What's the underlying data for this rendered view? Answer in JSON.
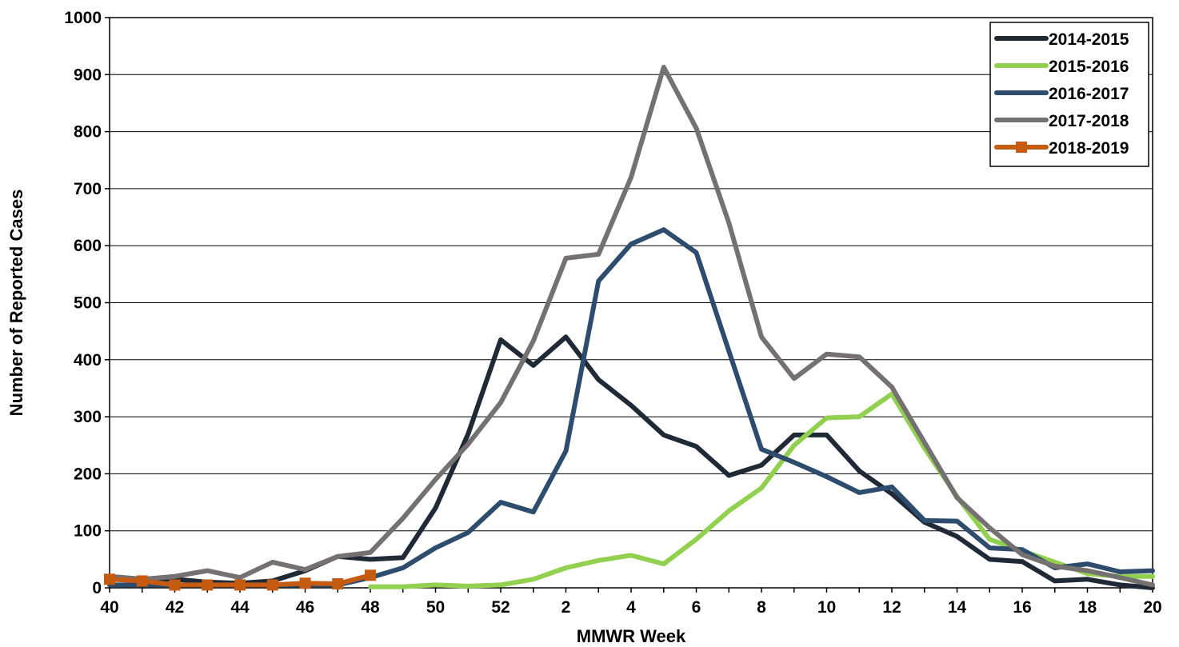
{
  "chart_data": {
    "type": "line",
    "title": "",
    "xlabel": "MMWR Week",
    "ylabel": "Number of Reported Cases",
    "ylim": [
      0,
      1000
    ],
    "yticks": [
      0,
      100,
      200,
      300,
      400,
      500,
      600,
      700,
      800,
      900,
      1000
    ],
    "x": [
      "40",
      "41",
      "42",
      "43",
      "44",
      "45",
      "46",
      "47",
      "48",
      "49",
      "50",
      "51",
      "52",
      "1",
      "2",
      "3",
      "4",
      "5",
      "6",
      "7",
      "8",
      "9",
      "10",
      "11",
      "12",
      "13",
      "14",
      "15",
      "16",
      "17",
      "18",
      "19",
      "20"
    ],
    "xtick_labels": [
      "40",
      "42",
      "44",
      "46",
      "48",
      "50",
      "52",
      "2",
      "4",
      "6",
      "8",
      "10",
      "12",
      "14",
      "16",
      "18",
      "20"
    ],
    "grid": "horizontal",
    "legend_position": "top-right",
    "series": [
      {
        "name": "2014-2015",
        "color": "#1f2a36",
        "marker": "none",
        "values": [
          20,
          15,
          15,
          10,
          8,
          12,
          30,
          55,
          50,
          53,
          140,
          270,
          435,
          390,
          440,
          365,
          320,
          268,
          248,
          197,
          215,
          268,
          268,
          205,
          165,
          115,
          90,
          50,
          46,
          12,
          15,
          5,
          0
        ]
      },
      {
        "name": "2015-2016",
        "color": "#92d050",
        "marker": "none",
        "values": [
          null,
          null,
          null,
          null,
          null,
          null,
          null,
          null,
          2,
          2,
          5,
          3,
          5,
          15,
          35,
          48,
          57,
          42,
          85,
          135,
          175,
          250,
          298,
          300,
          340,
          245,
          160,
          85,
          65,
          45,
          25,
          20,
          20
        ]
      },
      {
        "name": "2016-2017",
        "color": "#2e4d6e",
        "marker": "none",
        "values": [
          5,
          5,
          5,
          5,
          5,
          5,
          5,
          5,
          18,
          35,
          70,
          97,
          150,
          133,
          240,
          538,
          603,
          628,
          588,
          415,
          243,
          220,
          195,
          167,
          177,
          118,
          117,
          70,
          67,
          35,
          42,
          28,
          30
        ]
      },
      {
        "name": "2017-2018",
        "color": "#767171",
        "marker": "none",
        "values": [
          20,
          15,
          20,
          30,
          18,
          45,
          32,
          55,
          62,
          122,
          190,
          252,
          325,
          433,
          578,
          585,
          720,
          913,
          806,
          640,
          440,
          367,
          410,
          405,
          352,
          255,
          158,
          105,
          58,
          38,
          30,
          18,
          5
        ]
      },
      {
        "name": "2018-2019",
        "color": "#c55a11",
        "marker": "square",
        "values": [
          15,
          12,
          5,
          5,
          5,
          5,
          8,
          7,
          22,
          null,
          null,
          null,
          null,
          null,
          null,
          null,
          null,
          null,
          null,
          null,
          null,
          null,
          null,
          null,
          null,
          null,
          null,
          null,
          null,
          null,
          null,
          null,
          null
        ]
      }
    ]
  }
}
